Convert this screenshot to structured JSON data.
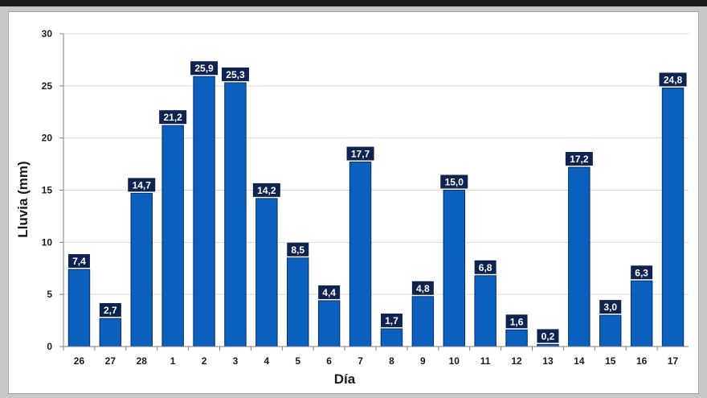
{
  "chart_data": {
    "type": "bar",
    "title": "",
    "xlabel": "Día",
    "ylabel": "Lluvia (mm)",
    "ylim": [
      0,
      30
    ],
    "yticks": [
      0,
      5,
      10,
      15,
      20,
      25,
      30
    ],
    "categories": [
      "26",
      "27",
      "28",
      "1",
      "2",
      "3",
      "4",
      "5",
      "6",
      "7",
      "8",
      "9",
      "10",
      "11",
      "12",
      "13",
      "14",
      "15",
      "16",
      "17"
    ],
    "values": [
      7.4,
      2.7,
      14.7,
      21.2,
      25.9,
      25.3,
      14.2,
      8.5,
      4.4,
      17.7,
      1.7,
      4.8,
      15.0,
      6.8,
      1.6,
      0.2,
      17.2,
      3.0,
      6.3,
      24.8
    ],
    "data_labels": [
      "7,4",
      "2,7",
      "14,7",
      "21,2",
      "25,9",
      "25,3",
      "14,2",
      "8,5",
      "4,4",
      "17,7",
      "1,7",
      "4,8",
      "15,0",
      "6,8",
      "1,6",
      "0,2",
      "17,2",
      "3,0",
      "6,3",
      "24,8"
    ],
    "grid": true,
    "colors": {
      "bar": "#0b5fbd",
      "bar_edge": "#0a2f66",
      "label_bg": "#0f2350",
      "label_text": "#ffffff",
      "grid": "#d9d9d9",
      "axis": "#7f7f7f"
    }
  }
}
